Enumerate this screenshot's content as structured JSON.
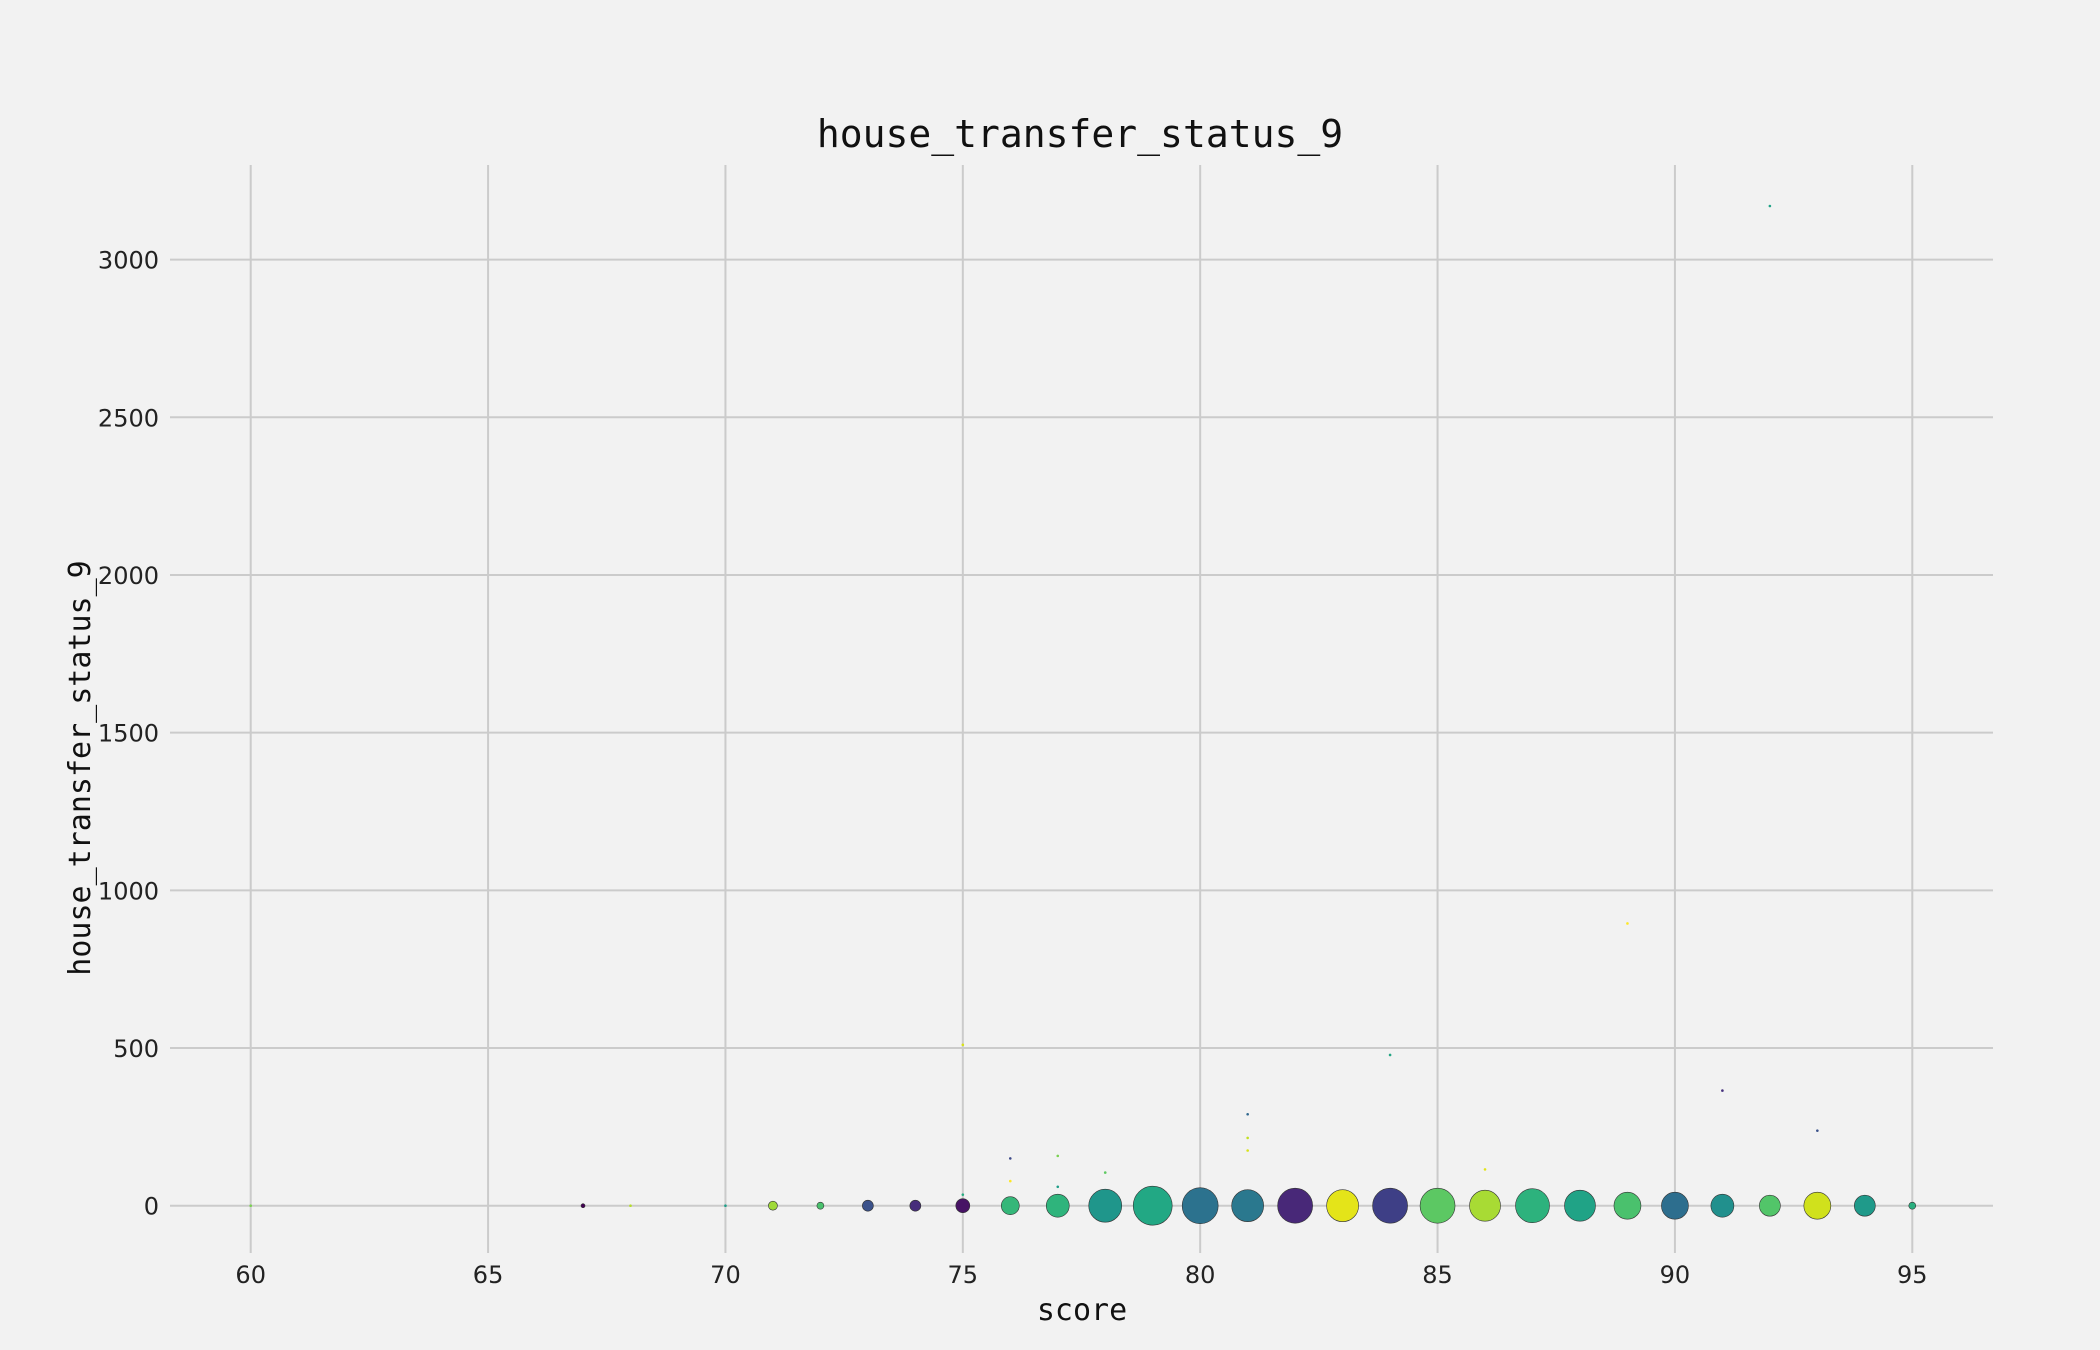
{
  "chart_data": {
    "type": "scatter",
    "title": "house_transfer_status_9",
    "xlabel": "score",
    "ylabel": "house_transfer_status_9",
    "xlim": [
      58.3,
      96.7
    ],
    "ylim": [
      -150,
      3300
    ],
    "x_ticks": [
      60,
      65,
      70,
      75,
      80,
      85,
      90,
      95
    ],
    "y_ticks": [
      0,
      500,
      1000,
      1500,
      2000,
      2500,
      3000
    ],
    "grid": true,
    "colormap": "viridis",
    "points": [
      {
        "x": 60,
        "y": 0,
        "size": 2,
        "color": "#7ad151"
      },
      {
        "x": 67,
        "y": 0,
        "size": 4,
        "color": "#440154"
      },
      {
        "x": 68,
        "y": 0,
        "size": 2,
        "color": "#b5de2b"
      },
      {
        "x": 70,
        "y": 0,
        "size": 2,
        "color": "#1f9e89"
      },
      {
        "x": 71,
        "y": 0,
        "size": 9,
        "color": "#a0da39"
      },
      {
        "x": 72,
        "y": 0,
        "size": 7,
        "color": "#4ac16d"
      },
      {
        "x": 73,
        "y": 0,
        "size": 11,
        "color": "#3b528b"
      },
      {
        "x": 74,
        "y": 0,
        "size": 11,
        "color": "#472d7b"
      },
      {
        "x": 75,
        "y": 0,
        "size": 14,
        "color": "#471365"
      },
      {
        "x": 75,
        "y": 510,
        "size": 2,
        "color": "#d8e219"
      },
      {
        "x": 75,
        "y": 35,
        "size": 2,
        "color": "#26ad81"
      },
      {
        "x": 76,
        "y": 0,
        "size": 18,
        "color": "#35b779"
      },
      {
        "x": 76,
        "y": 150,
        "size": 2,
        "color": "#3e4a89"
      },
      {
        "x": 76,
        "y": 78,
        "size": 2,
        "color": "#fde725"
      },
      {
        "x": 77,
        "y": 0,
        "size": 23,
        "color": "#2fb47c"
      },
      {
        "x": 77,
        "y": 158,
        "size": 2,
        "color": "#7ad151"
      },
      {
        "x": 77,
        "y": 60,
        "size": 2,
        "color": "#1f9e89"
      },
      {
        "x": 78,
        "y": 0,
        "size": 33,
        "color": "#1f968b"
      },
      {
        "x": 78,
        "y": 105,
        "size": 2,
        "color": "#5ec962"
      },
      {
        "x": 79,
        "y": 0,
        "size": 39,
        "color": "#22a884"
      },
      {
        "x": 80,
        "y": 0,
        "size": 36,
        "color": "#2c728e"
      },
      {
        "x": 81,
        "y": 0,
        "size": 32,
        "color": "#2a788e"
      },
      {
        "x": 81,
        "y": 290,
        "size": 2,
        "color": "#31688e"
      },
      {
        "x": 81,
        "y": 215,
        "size": 2,
        "color": "#c2df23"
      },
      {
        "x": 81,
        "y": 175,
        "size": 2,
        "color": "#d8e219"
      },
      {
        "x": 82,
        "y": 0,
        "size": 35,
        "color": "#482878"
      },
      {
        "x": 83,
        "y": 0,
        "size": 32,
        "color": "#e4e419"
      },
      {
        "x": 84,
        "y": 0,
        "size": 35,
        "color": "#3e3f86"
      },
      {
        "x": 84,
        "y": 478,
        "size": 2,
        "color": "#25a584"
      },
      {
        "x": 85,
        "y": 0,
        "size": 35,
        "color": "#5cc863"
      },
      {
        "x": 86,
        "y": 0,
        "size": 31,
        "color": "#a8db34"
      },
      {
        "x": 86,
        "y": 115,
        "size": 2,
        "color": "#e2e418"
      },
      {
        "x": 87,
        "y": 0,
        "size": 34,
        "color": "#2db27d"
      },
      {
        "x": 88,
        "y": 0,
        "size": 31,
        "color": "#20a386"
      },
      {
        "x": 89,
        "y": 0,
        "size": 27,
        "color": "#4ac16d"
      },
      {
        "x": 89,
        "y": 895,
        "size": 2,
        "color": "#fde725"
      },
      {
        "x": 90,
        "y": 0,
        "size": 27,
        "color": "#2d6e8e"
      },
      {
        "x": 91,
        "y": 0,
        "size": 23,
        "color": "#21908d"
      },
      {
        "x": 91,
        "y": 365,
        "size": 2,
        "color": "#46327e"
      },
      {
        "x": 92,
        "y": 0,
        "size": 21,
        "color": "#52c569"
      },
      {
        "x": 92,
        "y": 3170,
        "size": 2,
        "color": "#20a386"
      },
      {
        "x": 93,
        "y": 0,
        "size": 27,
        "color": "#d0e11c"
      },
      {
        "x": 93,
        "y": 238,
        "size": 2,
        "color": "#3b528b"
      },
      {
        "x": 94,
        "y": 0,
        "size": 21,
        "color": "#1f9a8a"
      },
      {
        "x": 95,
        "y": 0,
        "size": 7,
        "color": "#29af7f"
      }
    ]
  }
}
